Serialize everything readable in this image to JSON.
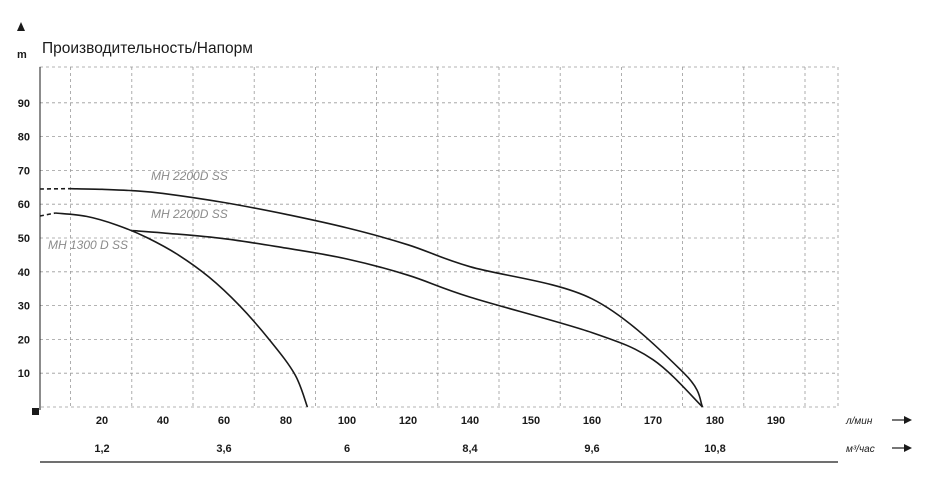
{
  "chart_data": {
    "type": "line",
    "title": "Производительность/Напорм",
    "ylabel": "m",
    "ylim": [
      0,
      100
    ],
    "y_ticks": [
      "10",
      "20",
      "30",
      "40",
      "50",
      "60",
      "70",
      "80",
      "90"
    ],
    "xlim": [
      0,
      200
    ],
    "x_ticks": [
      "20",
      "40",
      "60",
      "80",
      "100",
      "120",
      "140",
      "150",
      "160",
      "170",
      "180",
      "190"
    ],
    "xlabel": "л/мин",
    "x2_ticks": [
      "1,2",
      "3,6",
      "6",
      "8,4",
      "9,6",
      "10,8"
    ],
    "x2label": "м³/час",
    "grid": true,
    "series": [
      {
        "name": "MH 2200D SS",
        "x": [
          0,
          10,
          20,
          30,
          40,
          60,
          80,
          100,
          120,
          140,
          160,
          175,
          178
        ],
        "y": [
          64.5,
          64.6,
          64.4,
          64,
          63.2,
          60.5,
          57,
          53,
          48,
          41.5,
          32,
          10,
          0
        ],
        "dashed_until_x": 12
      },
      {
        "name": "MH 2200D SS",
        "x": [
          30,
          40,
          60,
          80,
          100,
          120,
          140,
          160,
          170,
          178
        ],
        "y": [
          52.2,
          51.5,
          49.8,
          47,
          43.8,
          39,
          32.5,
          22,
          14,
          0
        ],
        "dashed_until_x": null
      },
      {
        "name": "MH 1300 D SS",
        "x": [
          0,
          5,
          15,
          25,
          35,
          45,
          55,
          65,
          75,
          83,
          87
        ],
        "y": [
          56.5,
          57.4,
          56.4,
          53.8,
          50,
          45,
          38.5,
          30,
          19.5,
          9.5,
          0
        ],
        "dashed_until_x": 14
      }
    ]
  }
}
